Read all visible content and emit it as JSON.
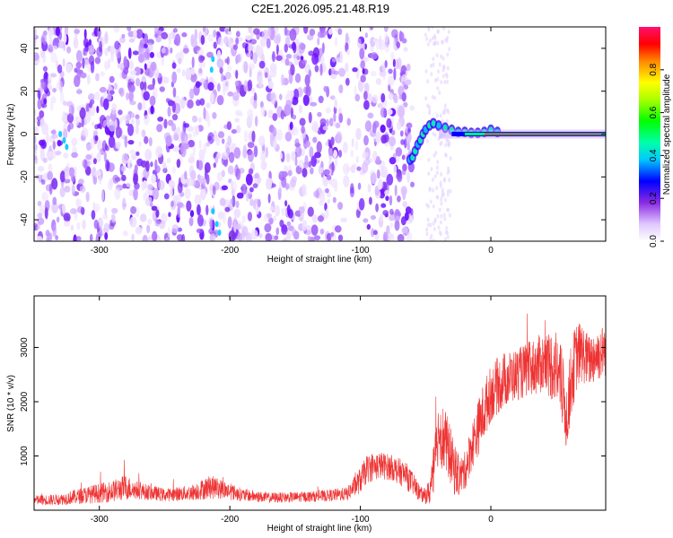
{
  "title": "C2E1.2026.095.21.48.R19",
  "colors": {
    "snr_trace": "#ee3333",
    "frame": "#000000"
  },
  "chart_data": [
    {
      "type": "heatmap",
      "title": "C2E1.2026.095.21.48.R19",
      "xlabel": "Height of straight line (km)",
      "ylabel": "Frequency (Hz)",
      "xlim": [
        -350,
        88
      ],
      "ylim": [
        -50,
        50
      ],
      "xticks": [
        -300,
        -200,
        -100,
        0
      ],
      "xtick_labels": [
        "-300",
        "-200",
        "-100",
        "0"
      ],
      "yticks": [
        -40,
        -20,
        0,
        20,
        40
      ],
      "ytick_labels": [
        "-40",
        "-20",
        "0",
        "20",
        "40"
      ],
      "colorbar": {
        "label": "Normalized spectral amplitude",
        "range": [
          0,
          1
        ],
        "ticks": [
          0.0,
          0.2,
          0.4,
          0.6,
          0.8
        ],
        "tick_labels": [
          "0.0",
          "0.2",
          "0.4",
          "0.6",
          "0.8"
        ]
      },
      "features": {
        "noise_region_km": [
          -350,
          -60
        ],
        "signal_onset_km": -60,
        "carrier_frequency_hz": 0
      }
    },
    {
      "type": "line",
      "xlabel": "Height of straight line (km)",
      "ylabel": "SNR (10 * v/v)",
      "xlim": [
        -350,
        88
      ],
      "ylim": [
        0,
        3950
      ],
      "xticks": [
        -300,
        -200,
        -100,
        0
      ],
      "xtick_labels": [
        "-300",
        "-200",
        "-100",
        "0"
      ],
      "yticks": [
        1000,
        2000,
        3000
      ],
      "ytick_labels": [
        "1000",
        "2000",
        "3000"
      ],
      "series": [
        {
          "name": "SNR",
          "x": [
            -350,
            -330,
            -310,
            -290,
            -280,
            -270,
            -250,
            -230,
            -215,
            -205,
            -190,
            -170,
            -150,
            -130,
            -110,
            -100,
            -95,
            -85,
            -75,
            -65,
            -58,
            -52,
            -47,
            -43,
            -40,
            -36,
            -32,
            -28,
            -24,
            -20,
            -15,
            -10,
            -5,
            0,
            10,
            20,
            30,
            40,
            50,
            55,
            58,
            62,
            66,
            70,
            75,
            80,
            88
          ],
          "values": [
            180,
            200,
            280,
            350,
            420,
            360,
            280,
            320,
            430,
            380,
            280,
            230,
            240,
            260,
            300,
            550,
            760,
            830,
            780,
            640,
            430,
            250,
            330,
            800,
            1500,
            1300,
            1100,
            750,
            620,
            720,
            1150,
            1500,
            1850,
            2150,
            2400,
            2500,
            2600,
            2720,
            2650,
            2200,
            1700,
            2500,
            2850,
            2900,
            2750,
            2850,
            2950
          ],
          "spread": [
            120,
            130,
            200,
            250,
            300,
            200,
            150,
            180,
            280,
            220,
            150,
            120,
            120,
            130,
            160,
            300,
            330,
            320,
            300,
            320,
            250,
            150,
            300,
            700,
            700,
            800,
            700,
            600,
            450,
            450,
            550,
            650,
            700,
            650,
            650,
            600,
            650,
            700,
            900,
            900,
            800,
            900,
            800,
            700,
            600,
            650,
            600
          ]
        }
      ]
    }
  ]
}
